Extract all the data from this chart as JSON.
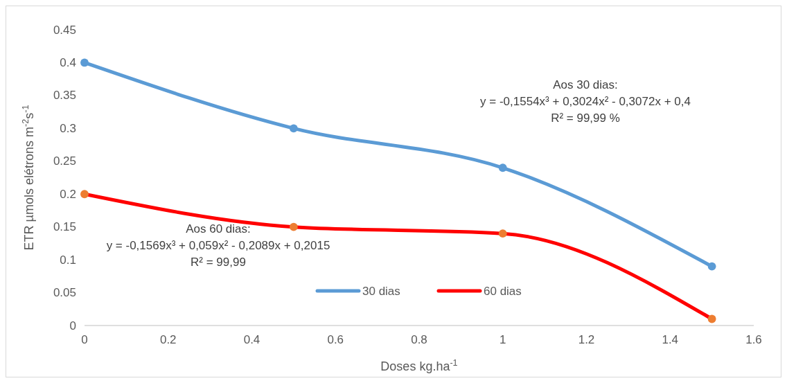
{
  "chart_data": {
    "type": "line",
    "xlabel": "Doses kg.ha$^{-1}$",
    "ylabel": "ETR µmols elétrons m$^{-2}$s$^{-1}$",
    "x": [
      0,
      0.5,
      1,
      1.5
    ],
    "series": [
      {
        "name": "30 dias",
        "color": "#5b9bd5",
        "values": [
          0.4,
          0.3,
          0.24,
          0.09
        ],
        "marker": "none"
      },
      {
        "name": "60 dias",
        "color": "#ff0000",
        "values": [
          0.2,
          0.15,
          0.14,
          0.01
        ],
        "marker": "none"
      },
      {
        "type": "scatter",
        "color": "#5b9bd5",
        "values": [
          0.4,
          0.3,
          0.24,
          0.09
        ],
        "marker": "circle"
      },
      {
        "type": "scatter",
        "color": "#ed7d31",
        "values": [
          0.2,
          0.15,
          0.14,
          0.01
        ],
        "marker": "circle"
      }
    ],
    "xlim": [
      0,
      1.6
    ],
    "xticks": [
      0,
      0.2,
      0.4,
      0.6,
      0.8,
      1,
      1.2,
      1.4,
      1.6
    ],
    "ylim": [
      0,
      0.45
    ],
    "yticks": [
      0,
      0.05,
      0.1,
      0.15,
      0.2,
      0.25,
      0.3,
      0.35,
      0.4,
      0.45
    ],
    "grid": false,
    "legend": "bottom",
    "annotations": [
      "Aos 30 dias:\ny = -0,1554x³ + 0,3024x² - 0,3072x + 0,4\nR² = 99,99 %",
      "Aos 60 dias:\ny = -0,1569x³ + 0,059x² - 0,2089x + 0,2015\nR² = 99,99"
    ]
  }
}
